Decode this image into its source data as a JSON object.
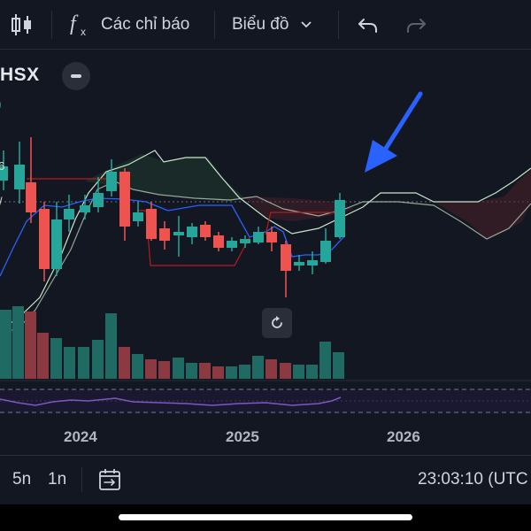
{
  "toolbar": {
    "indicators_label": "Các chỉ báo",
    "chart_type_label": "Biểu đồ"
  },
  "legend": {
    "symbol": "HSX"
  },
  "x_axis": {
    "years": [
      "2024",
      "2025",
      "2026"
    ]
  },
  "bottom_bar": {
    "range_5y": "5n",
    "range_1y": "1n",
    "clock": "23:03:10 (UTC"
  },
  "colors": {
    "up": "#26a69a",
    "down": "#ef5350",
    "background": "#131722",
    "arrow": "#2962ff",
    "cloud_line": "#c8e6c9",
    "base_line": "#2962ff",
    "rsi_line": "#7e57c2"
  },
  "icons": [
    "candlestick-icon",
    "function-icon",
    "chevron-down-icon",
    "undo-icon",
    "redo-icon",
    "minimize-icon",
    "reset-icon",
    "date-range-icon"
  ]
}
